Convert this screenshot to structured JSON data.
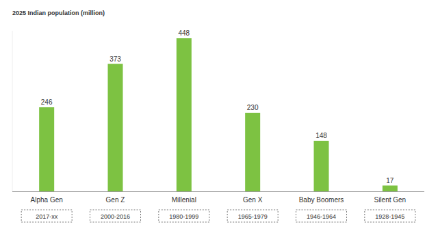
{
  "chart_data": {
    "type": "bar",
    "title": "2025 Indian population (million)",
    "categories": [
      "Alpha Gen",
      "Gen  Z",
      "Millenial",
      "Gen X",
      "Baby Boomers",
      "Silent Gen"
    ],
    "periods": [
      "2017-xx",
      "2000-2016",
      "1980-1999",
      "1965-1979",
      "1946-1964",
      "1928-1945"
    ],
    "values": [
      246,
      373,
      448,
      230,
      148,
      17
    ],
    "color": "#7dc242",
    "ylim": [
      0,
      470
    ],
    "data_labels": true,
    "tick_labels": "x",
    "grid": false
  }
}
